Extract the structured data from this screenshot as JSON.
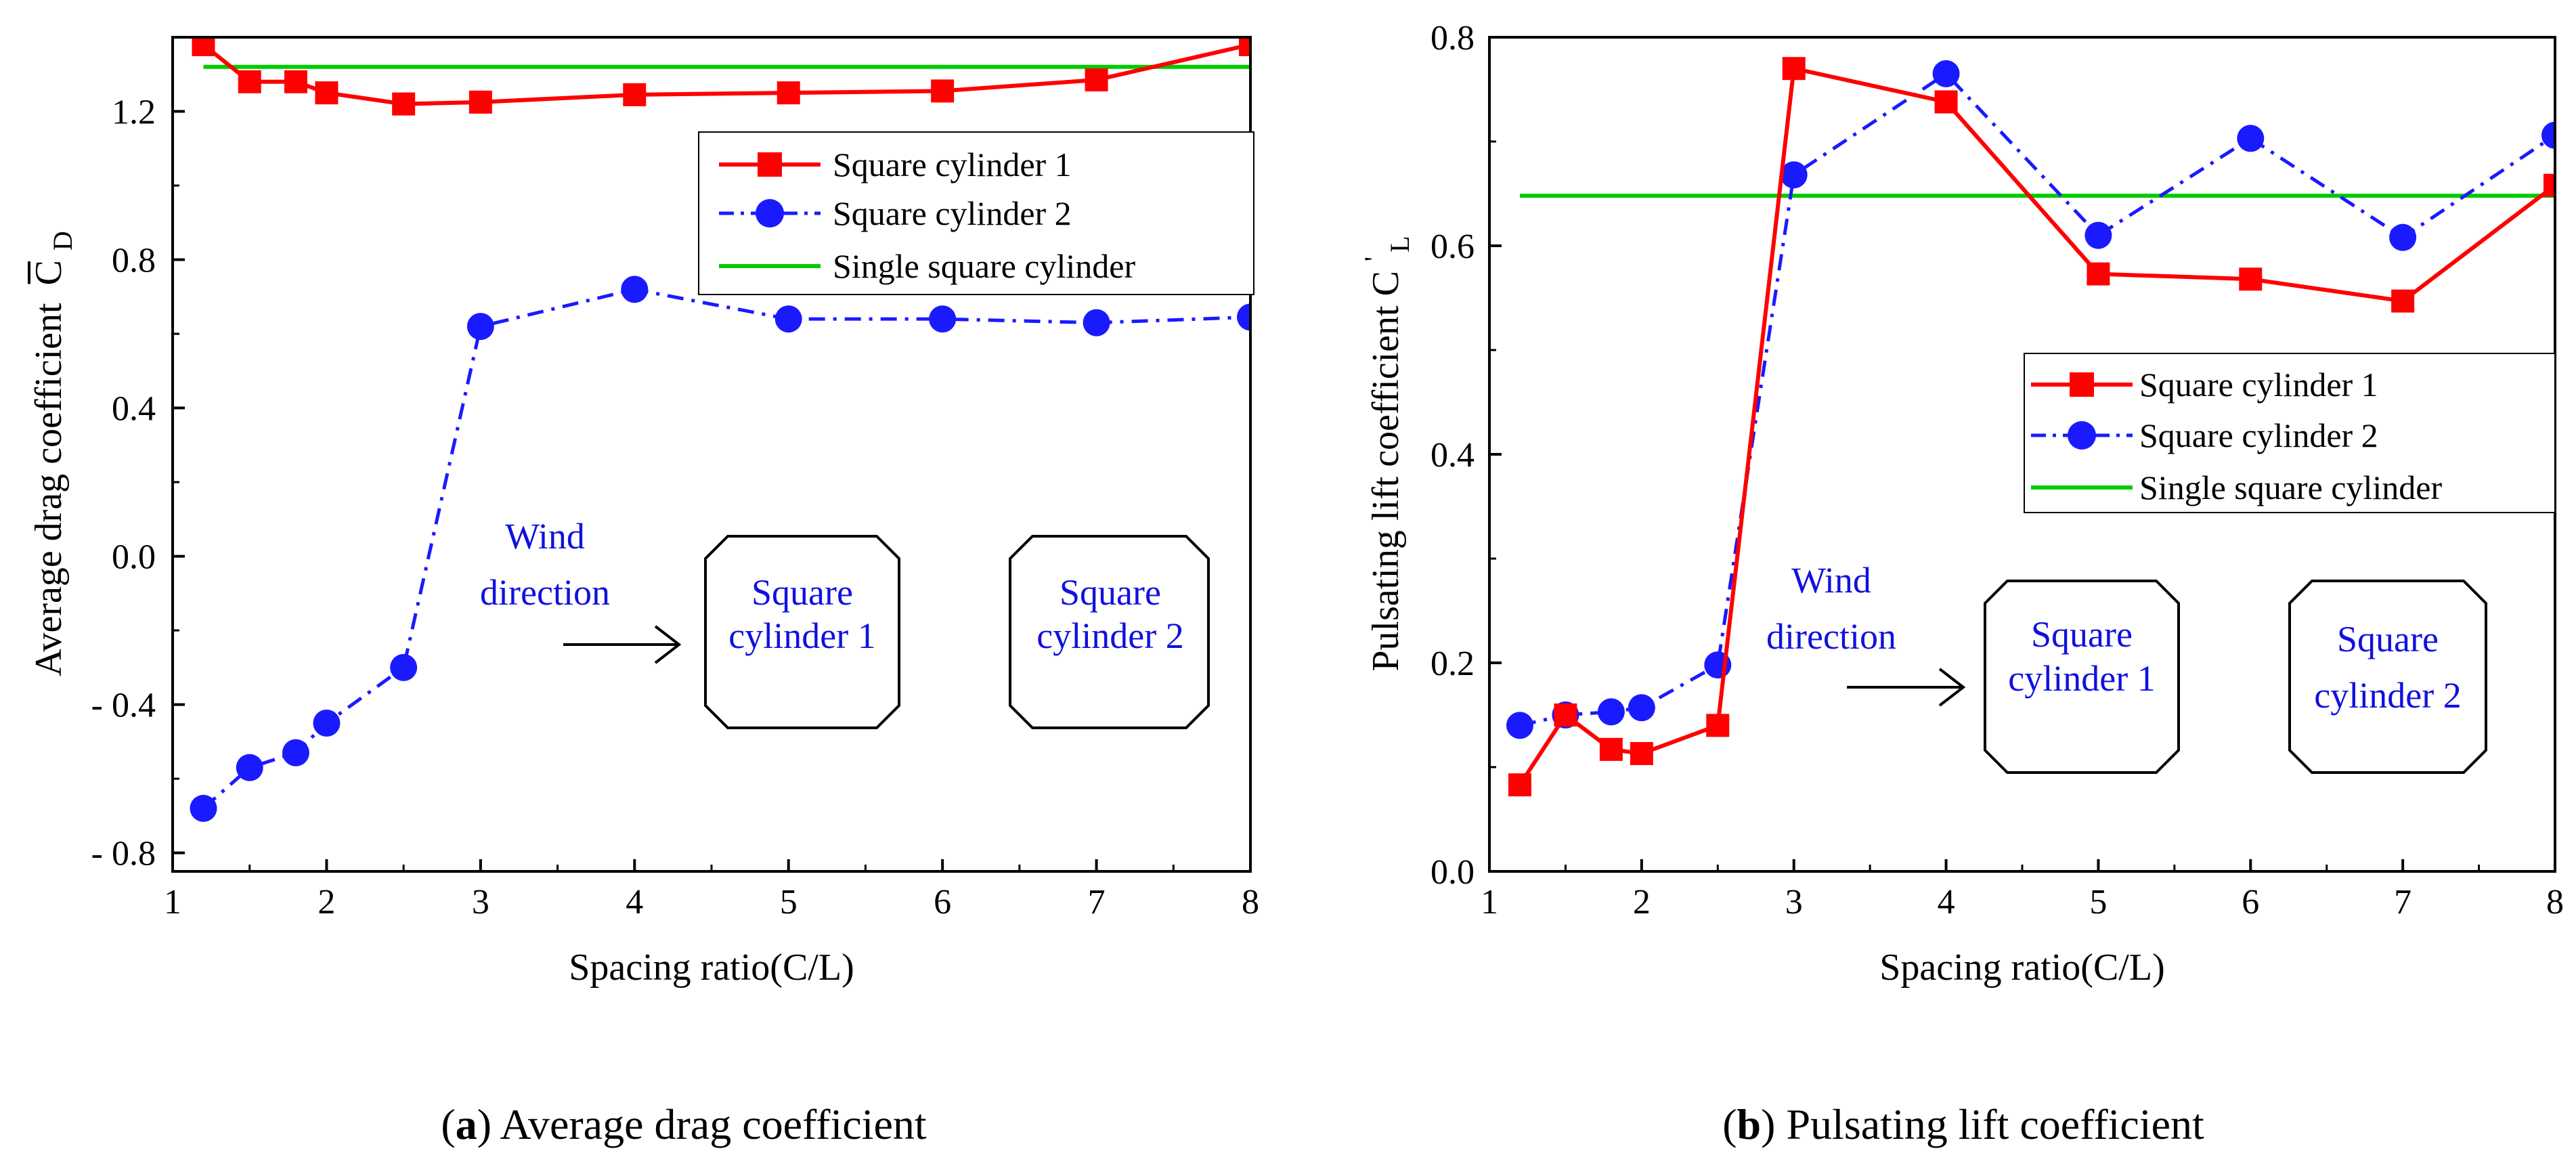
{
  "chart_data": [
    {
      "type": "line",
      "caption_letter": "a",
      "caption_text": "Average drag coefficient",
      "xlabel": "Spacing ratio(C/L)",
      "ylabel": "Average drag coefficient",
      "ylabel_symbol": "C",
      "ylabel_sub": "D",
      "xlim": [
        1,
        8
      ],
      "ylim": [
        -0.85,
        1.4
      ],
      "xticks": [
        1,
        2,
        3,
        4,
        5,
        6,
        7,
        8
      ],
      "xtick_labels": [
        "1",
        "2",
        "3",
        "4",
        "5",
        "6",
        "7",
        "8"
      ],
      "yticks": [
        -0.8,
        -0.4,
        0.0,
        0.4,
        0.8,
        1.2
      ],
      "ytick_labels": [
        "- 0.8",
        "- 0.4",
        "0.0",
        "0.4",
        "0.8",
        "1.2"
      ],
      "legend_position": "top-right",
      "series": [
        {
          "name": "Square cylinder 1",
          "color": "#ff0000",
          "marker": "square",
          "dash": "solid",
          "x": [
            1.2,
            1.5,
            1.8,
            2,
            2.5,
            3,
            4,
            5,
            6,
            7,
            8
          ],
          "y": [
            1.38,
            1.28,
            1.28,
            1.25,
            1.22,
            1.225,
            1.245,
            1.25,
            1.255,
            1.285,
            1.38
          ]
        },
        {
          "name": "Square cylinder 2",
          "color": "#1a1aff",
          "marker": "circle",
          "dash": "dashdot",
          "x": [
            1.2,
            1.5,
            1.8,
            2,
            2.5,
            3,
            4,
            5,
            6,
            7,
            8
          ],
          "y": [
            -0.68,
            -0.57,
            -0.53,
            -0.45,
            -0.3,
            0.62,
            0.72,
            0.64,
            0.64,
            0.63,
            0.645
          ]
        },
        {
          "name": "Single square cylinder",
          "color": "#00cc00",
          "marker": "none",
          "dash": "solid",
          "x": [
            1.2,
            8
          ],
          "y": [
            1.32,
            1.32
          ]
        }
      ],
      "inset": {
        "wind_line1": "Wind",
        "wind_line2": "direction",
        "box1_line1": "Square",
        "box1_line2": "cylinder 1",
        "box2_line1": "Square",
        "box2_line2": "cylinder 2"
      }
    },
    {
      "type": "line",
      "caption_letter": "b",
      "caption_text": "Pulsating lift coefficient",
      "xlabel": "Spacing ratio(C/L)",
      "ylabel": "Pulsating lift coefficient",
      "ylabel_symbol": "C",
      "ylabel_sub": "L",
      "ylabel_sup": "'",
      "xlim": [
        1,
        8
      ],
      "ylim": [
        0.0,
        0.8
      ],
      "xticks": [
        1,
        2,
        3,
        4,
        5,
        6,
        7,
        8
      ],
      "xtick_labels": [
        "1",
        "2",
        "3",
        "4",
        "5",
        "6",
        "7",
        "8"
      ],
      "yticks": [
        0.0,
        0.2,
        0.4,
        0.6,
        0.8
      ],
      "ytick_labels": [
        "0.0",
        "0.2",
        "0.4",
        "0.6",
        "0.8"
      ],
      "legend_position": "center-right",
      "series": [
        {
          "name": "Square cylinder 1",
          "color": "#ff0000",
          "marker": "square",
          "dash": "solid",
          "x": [
            1.2,
            1.5,
            1.8,
            2,
            2.5,
            3,
            4,
            5,
            6,
            7,
            8
          ],
          "y": [
            0.083,
            0.15,
            0.117,
            0.113,
            0.14,
            0.77,
            0.738,
            0.573,
            0.568,
            0.547,
            0.658
          ]
        },
        {
          "name": "Square cylinder 2",
          "color": "#1a1aff",
          "marker": "circle",
          "dash": "dashdot",
          "x": [
            1.2,
            1.5,
            1.8,
            2,
            2.5,
            3,
            4,
            5,
            6,
            7,
            8
          ],
          "y": [
            0.14,
            0.15,
            0.153,
            0.157,
            0.198,
            0.668,
            0.765,
            0.61,
            0.703,
            0.608,
            0.706
          ]
        },
        {
          "name": "Single square cylinder",
          "color": "#00cc00",
          "marker": "none",
          "dash": "solid",
          "x": [
            1.2,
            8
          ],
          "y": [
            0.648,
            0.648
          ]
        }
      ],
      "inset": {
        "wind_line1": "Wind",
        "wind_line2": "direction",
        "box1_line1": "Square",
        "box1_line2": "cylinder 1",
        "box2_line1": "Square",
        "box2_line2": "cylinder 2"
      }
    }
  ]
}
